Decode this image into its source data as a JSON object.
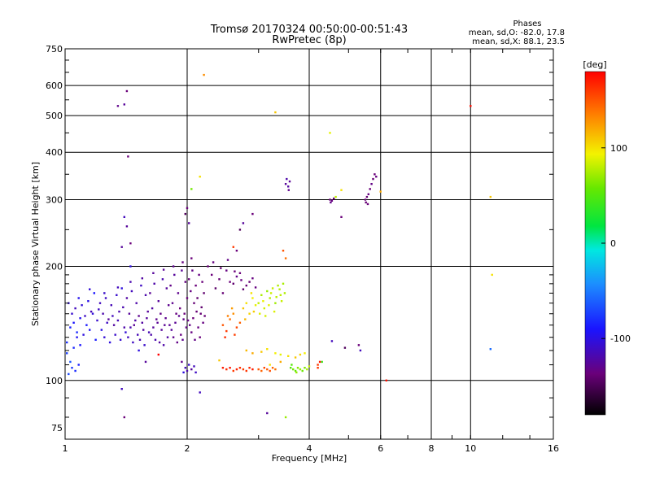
{
  "chart_data": {
    "type": "scatter",
    "title": "Tromsø 20170324 00:50:00-00:51:43",
    "subtitle": "RwPretec (8p)",
    "stats": {
      "heading": "Phases",
      "line_o": "mean, sd,O: -82.0, 17.8",
      "line_x": "mean, sd,X: 88.1, 23.5"
    },
    "xlabel": "Frequency [MHz]",
    "ylabel": "Stationary phase Virtual Height [km]",
    "x_scale": "log",
    "y_scale": "log",
    "xlim": [
      1,
      16
    ],
    "ylim": [
      70,
      750
    ],
    "x_ticks": [
      {
        "value": 1,
        "label": "1"
      },
      {
        "value": 2,
        "label": "2"
      },
      {
        "value": 4,
        "label": "4"
      },
      {
        "value": 6,
        "label": "6"
      },
      {
        "value": 8,
        "label": "8"
      },
      {
        "value": 10,
        "label": "10"
      },
      {
        "value": 16,
        "label": "16"
      }
    ],
    "y_ticks": [
      {
        "value": 75,
        "label": "75"
      },
      {
        "value": 100,
        "label": "100"
      },
      {
        "value": 200,
        "label": "200"
      },
      {
        "value": 300,
        "label": "300"
      },
      {
        "value": 400,
        "label": "400"
      },
      {
        "value": 500,
        "label": "500"
      },
      {
        "value": 600,
        "label": "600"
      },
      {
        "value": 750,
        "label": "750"
      }
    ],
    "grid": true,
    "colorbar": {
      "label": "[deg]",
      "min": -180,
      "max": 180,
      "ticks": [
        {
          "value": 100,
          "label": "100"
        },
        {
          "value": 0,
          "label": "0"
        },
        {
          "value": -100,
          "label": "-100"
        }
      ]
    },
    "points": [
      [
        1.02,
        160,
        -110
      ],
      [
        1.04,
        150,
        -115
      ],
      [
        1.06,
        155,
        -120
      ],
      [
        1.08,
        165,
        -105
      ],
      [
        1.1,
        158,
        -112
      ],
      [
        1.12,
        148,
        -118
      ],
      [
        1.14,
        162,
        -108
      ],
      [
        1.16,
        152,
        -122
      ],
      [
        1.18,
        170,
        -100
      ],
      [
        1.2,
        144,
        -115
      ],
      [
        1.03,
        138,
        -95
      ],
      [
        1.05,
        142,
        -100
      ],
      [
        1.07,
        134,
        -90
      ],
      [
        1.09,
        146,
        -105
      ],
      [
        1.11,
        132,
        -110
      ],
      [
        1.13,
        140,
        -98
      ],
      [
        1.15,
        136,
        -102
      ],
      [
        1.17,
        150,
        -112
      ],
      [
        1.19,
        128,
        -96
      ],
      [
        1.21,
        154,
        -118
      ],
      [
        1.01,
        118,
        -80
      ],
      [
        1.03,
        112,
        -70
      ],
      [
        1.04,
        108,
        -85
      ],
      [
        1.06,
        106,
        -90
      ],
      [
        1.08,
        110,
        -95
      ],
      [
        1.02,
        104,
        -75
      ],
      [
        1.01,
        126,
        -88
      ],
      [
        1.05,
        122,
        -92
      ],
      [
        1.07,
        130,
        -104
      ],
      [
        1.09,
        124,
        -100
      ],
      [
        1.22,
        160,
        -120
      ],
      [
        1.24,
        150,
        -125
      ],
      [
        1.26,
        165,
        -118
      ],
      [
        1.28,
        145,
        -130
      ],
      [
        1.3,
        158,
        -122
      ],
      [
        1.32,
        140,
        -128
      ],
      [
        1.34,
        168,
        -115
      ],
      [
        1.36,
        152,
        -124
      ],
      [
        1.38,
        175,
        -110
      ],
      [
        1.4,
        138,
        -126
      ],
      [
        1.23,
        136,
        -108
      ],
      [
        1.25,
        130,
        -112
      ],
      [
        1.27,
        142,
        -118
      ],
      [
        1.29,
        126,
        -110
      ],
      [
        1.31,
        148,
        -120
      ],
      [
        1.33,
        132,
        -116
      ],
      [
        1.35,
        144,
        -122
      ],
      [
        1.37,
        128,
        -114
      ],
      [
        1.39,
        156,
        -124
      ],
      [
        1.41,
        134,
        -112
      ],
      [
        1.42,
        165,
        -128
      ],
      [
        1.44,
        150,
        -130
      ],
      [
        1.46,
        172,
        -120
      ],
      [
        1.48,
        140,
        -132
      ],
      [
        1.5,
        160,
        -126
      ],
      [
        1.52,
        148,
        -134
      ],
      [
        1.54,
        178,
        -118
      ],
      [
        1.56,
        136,
        -128
      ],
      [
        1.58,
        168,
        -125
      ],
      [
        1.6,
        152,
        -130
      ],
      [
        1.43,
        130,
        -120
      ],
      [
        1.45,
        138,
        -124
      ],
      [
        1.47,
        126,
        -118
      ],
      [
        1.49,
        144,
        -126
      ],
      [
        1.51,
        132,
        -122
      ],
      [
        1.53,
        128,
        -124
      ],
      [
        1.55,
        142,
        -128
      ],
      [
        1.57,
        124,
        -116
      ],
      [
        1.59,
        146,
        -130
      ],
      [
        1.61,
        134,
        -122
      ],
      [
        1.62,
        170,
        -132
      ],
      [
        1.64,
        155,
        -128
      ],
      [
        1.66,
        180,
        -126
      ],
      [
        1.68,
        145,
        -134
      ],
      [
        1.7,
        162,
        -130
      ],
      [
        1.72,
        150,
        -136
      ],
      [
        1.74,
        185,
        -124
      ],
      [
        1.76,
        140,
        -132
      ],
      [
        1.78,
        175,
        -130
      ],
      [
        1.8,
        158,
        -134
      ],
      [
        1.63,
        132,
        -126
      ],
      [
        1.65,
        138,
        -130
      ],
      [
        1.67,
        128,
        -124
      ],
      [
        1.69,
        142,
        -132
      ],
      [
        1.71,
        126,
        -128
      ],
      [
        1.73,
        136,
        -130
      ],
      [
        1.75,
        124,
        -126
      ],
      [
        1.77,
        146,
        -134
      ],
      [
        1.79,
        130,
        -128
      ],
      [
        1.81,
        140,
        -132
      ],
      [
        1.82,
        178,
        -136
      ],
      [
        1.84,
        160,
        -134
      ],
      [
        1.86,
        190,
        -130
      ],
      [
        1.88,
        150,
        -138
      ],
      [
        1.9,
        170,
        -134
      ],
      [
        1.92,
        155,
        -140
      ],
      [
        1.94,
        195,
        -132
      ],
      [
        1.96,
        145,
        -136
      ],
      [
        1.98,
        182,
        -138
      ],
      [
        2.0,
        165,
        -140
      ],
      [
        1.83,
        136,
        -130
      ],
      [
        1.85,
        130,
        -134
      ],
      [
        1.87,
        142,
        -132
      ],
      [
        1.89,
        126,
        -136
      ],
      [
        1.91,
        148,
        -134
      ],
      [
        1.93,
        132,
        -138
      ],
      [
        1.95,
        128,
        -134
      ],
      [
        1.97,
        150,
        -140
      ],
      [
        1.99,
        138,
        -136
      ],
      [
        2.01,
        144,
        -138
      ],
      [
        2.02,
        185,
        -140
      ],
      [
        2.04,
        172,
        -138
      ],
      [
        2.06,
        195,
        -136
      ],
      [
        2.08,
        160,
        -142
      ],
      [
        2.1,
        178,
        -140
      ],
      [
        2.12,
        165,
        -144
      ],
      [
        2.14,
        190,
        -138
      ],
      [
        2.16,
        150,
        -142
      ],
      [
        2.18,
        182,
        -140
      ],
      [
        2.2,
        170,
        -144
      ],
      [
        2.03,
        140,
        -136
      ],
      [
        2.05,
        134,
        -138
      ],
      [
        2.07,
        146,
        -140
      ],
      [
        2.09,
        128,
        -136
      ],
      [
        2.11,
        152,
        -142
      ],
      [
        2.13,
        138,
        -138
      ],
      [
        2.15,
        130,
        -140
      ],
      [
        2.17,
        156,
        -144
      ],
      [
        2.19,
        142,
        -138
      ],
      [
        2.21,
        148,
        -142
      ],
      [
        1.35,
        176,
        -120
      ],
      [
        1.45,
        182,
        -124
      ],
      [
        1.55,
        186,
        -128
      ],
      [
        1.65,
        192,
        -130
      ],
      [
        1.75,
        196,
        -132
      ],
      [
        1.85,
        200,
        -134
      ],
      [
        1.95,
        205,
        -138
      ],
      [
        2.05,
        210,
        -140
      ],
      [
        1.25,
        170,
        -116
      ],
      [
        1.15,
        174,
        -112
      ],
      [
        2.3,
        190,
        -140
      ],
      [
        2.4,
        185,
        -142
      ],
      [
        2.5,
        195,
        -138
      ],
      [
        2.6,
        180,
        -144
      ],
      [
        2.7,
        192,
        -140
      ],
      [
        2.8,
        178,
        -142
      ],
      [
        2.9,
        186,
        -138
      ],
      [
        2.35,
        175,
        -146
      ],
      [
        2.45,
        170,
        -142
      ],
      [
        2.55,
        182,
        -140
      ],
      [
        2.65,
        188,
        -136
      ],
      [
        2.75,
        174,
        -144
      ],
      [
        2.85,
        182,
        -142
      ],
      [
        2.95,
        176,
        -138
      ],
      [
        2.25,
        200,
        -140
      ],
      [
        2.32,
        205,
        -138
      ],
      [
        2.42,
        198,
        -142
      ],
      [
        2.52,
        208,
        -136
      ],
      [
        2.62,
        194,
        -140
      ],
      [
        2.72,
        184,
        -138
      ],
      [
        1.98,
        108,
        -120
      ],
      [
        2.0,
        106,
        -125
      ],
      [
        2.02,
        110,
        -115
      ],
      [
        2.05,
        107,
        -130
      ],
      [
        1.96,
        105,
        -110
      ],
      [
        2.08,
        109,
        -120
      ],
      [
        1.94,
        112,
        -135
      ],
      [
        2.1,
        105,
        -118
      ],
      [
        2.45,
        140,
        150
      ],
      [
        2.5,
        135,
        160
      ],
      [
        2.55,
        145,
        140
      ],
      [
        2.6,
        150,
        130
      ],
      [
        2.65,
        138,
        155
      ],
      [
        2.7,
        142,
        145
      ],
      [
        2.48,
        130,
        165
      ],
      [
        2.58,
        155,
        125
      ],
      [
        2.52,
        148,
        135
      ],
      [
        2.62,
        132,
        158
      ],
      [
        2.75,
        155,
        110
      ],
      [
        2.8,
        160,
        100
      ],
      [
        2.85,
        150,
        105
      ],
      [
        2.9,
        165,
        95
      ],
      [
        2.95,
        158,
        90
      ],
      [
        2.78,
        145,
        115
      ],
      [
        2.88,
        170,
        100
      ],
      [
        2.92,
        152,
        108
      ],
      [
        3.0,
        160,
        80
      ],
      [
        3.05,
        168,
        75
      ],
      [
        3.1,
        155,
        85
      ],
      [
        3.15,
        172,
        70
      ],
      [
        3.2,
        165,
        78
      ],
      [
        3.25,
        175,
        82
      ],
      [
        3.3,
        160,
        72
      ],
      [
        3.35,
        178,
        76
      ],
      [
        3.4,
        168,
        80
      ],
      [
        3.45,
        180,
        74
      ],
      [
        3.02,
        150,
        88
      ],
      [
        3.08,
        162,
        92
      ],
      [
        3.12,
        148,
        86
      ],
      [
        3.18,
        158,
        90
      ],
      [
        3.22,
        170,
        84
      ],
      [
        3.28,
        152,
        88
      ],
      [
        3.32,
        166,
        80
      ],
      [
        3.38,
        174,
        78
      ],
      [
        3.42,
        162,
        82
      ],
      [
        3.48,
        170,
        76
      ],
      [
        2.45,
        108,
        170
      ],
      [
        2.5,
        107,
        165
      ],
      [
        2.55,
        108,
        172
      ],
      [
        2.6,
        106,
        160
      ],
      [
        2.65,
        107,
        168
      ],
      [
        2.7,
        108,
        164
      ],
      [
        2.75,
        107,
        158
      ],
      [
        2.8,
        106,
        162
      ],
      [
        2.85,
        108,
        166
      ],
      [
        2.9,
        107,
        170
      ],
      [
        3.0,
        107,
        150
      ],
      [
        3.05,
        106,
        145
      ],
      [
        3.1,
        108,
        155
      ],
      [
        3.15,
        107,
        148
      ],
      [
        3.2,
        106,
        152
      ],
      [
        3.25,
        108,
        145
      ],
      [
        3.3,
        107,
        140
      ],
      [
        3.6,
        108,
        50
      ],
      [
        3.65,
        107,
        60
      ],
      [
        3.7,
        106,
        55
      ],
      [
        3.75,
        108,
        65
      ],
      [
        3.8,
        107,
        70
      ],
      [
        3.85,
        106,
        58
      ],
      [
        3.9,
        108,
        62
      ],
      [
        3.95,
        107,
        75
      ],
      [
        4.0,
        109,
        80
      ],
      [
        3.62,
        110,
        52
      ],
      [
        3.72,
        105,
        68
      ],
      [
        2.8,
        120,
        115
      ],
      [
        2.9,
        118,
        120
      ],
      [
        3.05,
        119,
        110
      ],
      [
        3.15,
        121,
        100
      ],
      [
        3.3,
        118,
        95
      ],
      [
        3.4,
        117,
        90
      ],
      [
        3.55,
        116,
        100
      ],
      [
        3.7,
        115,
        110
      ],
      [
        3.8,
        117,
        105
      ],
      [
        3.9,
        118,
        95
      ],
      [
        4.2,
        108,
        160
      ],
      [
        4.25,
        112,
        170
      ],
      [
        6.2,
        100,
        175
      ],
      [
        3.5,
        210,
        140
      ],
      [
        3.45,
        220,
        150
      ],
      [
        3.5,
        330,
        -130
      ],
      [
        3.55,
        325,
        -128
      ],
      [
        3.58,
        335,
        -132
      ],
      [
        3.52,
        340,
        -126
      ],
      [
        3.56,
        318,
        -134
      ],
      [
        4.5,
        300,
        -140
      ],
      [
        4.55,
        298,
        -138
      ],
      [
        4.6,
        302,
        -142
      ],
      [
        4.52,
        295,
        -136
      ],
      [
        5.5,
        300,
        -140
      ],
      [
        5.55,
        305,
        -142
      ],
      [
        5.6,
        310,
        -138
      ],
      [
        5.65,
        320,
        -140
      ],
      [
        5.7,
        330,
        -136
      ],
      [
        5.75,
        340,
        -142
      ],
      [
        5.8,
        350,
        -140
      ],
      [
        5.85,
        345,
        -138
      ],
      [
        5.52,
        295,
        -142
      ],
      [
        5.58,
        292,
        -140
      ],
      [
        4.65,
        305,
        80
      ],
      [
        4.8,
        318,
        100
      ],
      [
        6.0,
        315,
        120
      ],
      [
        10.0,
        530,
        175
      ],
      [
        11.2,
        305,
        110
      ],
      [
        11.3,
        190,
        100
      ],
      [
        11.2,
        121,
        -60
      ],
      [
        3.3,
        510,
        110
      ],
      [
        4.5,
        450,
        90
      ],
      [
        2.2,
        640,
        130
      ],
      [
        2.15,
        345,
        100
      ],
      [
        2.05,
        320,
        60
      ],
      [
        1.42,
        580,
        -140
      ],
      [
        1.4,
        535,
        -130
      ],
      [
        1.35,
        530,
        -135
      ],
      [
        1.43,
        390,
        -140
      ],
      [
        1.4,
        270,
        -120
      ],
      [
        1.42,
        255,
        -130
      ],
      [
        1.45,
        200,
        -110
      ],
      [
        1.38,
        225,
        -130
      ],
      [
        1.45,
        230,
        -140
      ],
      [
        2.0,
        285,
        -140
      ],
      [
        1.98,
        275,
        -150
      ],
      [
        2.02,
        260,
        -130
      ],
      [
        2.9,
        275,
        -140
      ],
      [
        2.75,
        260,
        -130
      ],
      [
        2.7,
        250,
        -150
      ],
      [
        2.65,
        220,
        -140
      ],
      [
        2.6,
        225,
        160
      ],
      [
        1.38,
        95,
        -120
      ],
      [
        1.4,
        80,
        -140
      ],
      [
        2.15,
        93,
        -120
      ],
      [
        3.15,
        82,
        -130
      ],
      [
        3.5,
        80,
        70
      ],
      [
        1.52,
        120,
        -110
      ],
      [
        1.58,
        112,
        -130
      ],
      [
        1.7,
        117,
        180
      ],
      [
        5.3,
        124,
        -140
      ],
      [
        5.35,
        120,
        -120
      ],
      [
        4.9,
        122,
        -150
      ],
      [
        4.8,
        270,
        -140
      ],
      [
        4.55,
        127,
        -120
      ],
      [
        4.2,
        110,
        160
      ],
      [
        4.3,
        112,
        40
      ],
      [
        3.2,
        110,
        100
      ],
      [
        3.4,
        112,
        120
      ],
      [
        2.4,
        113,
        110
      ]
    ]
  }
}
